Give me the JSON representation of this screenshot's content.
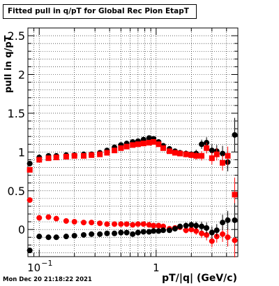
{
  "chart_data": {
    "type": "scatter",
    "title": "Fitted pull in q/pT for Global Rec Pion EtapT",
    "xlabel": "pT/|q| (GeV/c)",
    "ylabel": "pull in q/pT",
    "xscale": "log",
    "xlim": [
      0.08,
      5.0
    ],
    "ylim": [
      -0.35,
      2.6
    ],
    "yticks": [
      0,
      0.5,
      1,
      1.5,
      2,
      2.5
    ],
    "ytick_labels": [
      "0",
      "0.5",
      "1",
      "1.5",
      "2",
      "2.5"
    ],
    "xtick_labels": [
      {
        "value": 0.1,
        "label": "10",
        "exp": "−1"
      },
      {
        "value": 1,
        "label": "1",
        "exp": ""
      }
    ],
    "grid": true,
    "series": [
      {
        "color": "#000000",
        "marker": "circle",
        "x": [
          0.083,
          0.1,
          0.12,
          0.14,
          0.17,
          0.2,
          0.24,
          0.28,
          0.33,
          0.38,
          0.44,
          0.5,
          0.56,
          0.63,
          0.7,
          0.78,
          0.87,
          0.95,
          1.05,
          1.15,
          1.3,
          1.45,
          1.6,
          1.8,
          2.0,
          2.2,
          2.45,
          2.7,
          3.0,
          3.3,
          3.7,
          4.1,
          4.7
        ],
        "y": [
          0.85,
          0.93,
          0.95,
          0.95,
          0.96,
          0.96,
          0.97,
          0.97,
          0.99,
          1.02,
          1.06,
          1.09,
          1.11,
          1.13,
          1.14,
          1.16,
          1.18,
          1.17,
          1.13,
          1.08,
          1.04,
          1.01,
          0.99,
          0.98,
          0.97,
          0.98,
          1.1,
          1.12,
          1.02,
          1.01,
          0.98,
          0.87,
          1.22
        ],
        "yerr": [
          0.03,
          0.02,
          0.02,
          0.02,
          0.02,
          0.02,
          0.02,
          0.02,
          0.02,
          0.02,
          0.02,
          0.02,
          0.03,
          0.03,
          0.03,
          0.03,
          0.03,
          0.03,
          0.03,
          0.03,
          0.03,
          0.03,
          0.03,
          0.04,
          0.04,
          0.05,
          0.06,
          0.07,
          0.08,
          0.08,
          0.1,
          0.12,
          0.22
        ]
      },
      {
        "color": "#ff0000",
        "marker": "square",
        "x": [
          0.083,
          0.1,
          0.12,
          0.14,
          0.17,
          0.2,
          0.24,
          0.28,
          0.33,
          0.38,
          0.44,
          0.5,
          0.56,
          0.63,
          0.7,
          0.78,
          0.87,
          0.95,
          1.05,
          1.15,
          1.3,
          1.45,
          1.6,
          1.8,
          2.0,
          2.2,
          2.45,
          2.7,
          3.0,
          3.3,
          3.7,
          4.1,
          4.7
        ],
        "y": [
          0.77,
          0.9,
          0.92,
          0.93,
          0.94,
          0.95,
          0.95,
          0.96,
          0.97,
          0.99,
          1.02,
          1.05,
          1.07,
          1.09,
          1.1,
          1.11,
          1.12,
          1.13,
          1.1,
          1.05,
          1.01,
          0.99,
          0.98,
          0.97,
          0.96,
          0.95,
          0.95,
          1.05,
          0.92,
          0.97,
          0.86,
          0.95,
          0.45
        ],
        "yerr": [
          0.03,
          0.02,
          0.02,
          0.02,
          0.02,
          0.02,
          0.02,
          0.02,
          0.02,
          0.02,
          0.02,
          0.02,
          0.03,
          0.03,
          0.03,
          0.03,
          0.03,
          0.03,
          0.03,
          0.03,
          0.03,
          0.03,
          0.03,
          0.04,
          0.04,
          0.05,
          0.06,
          0.07,
          0.08,
          0.08,
          0.1,
          0.12,
          0.22
        ]
      },
      {
        "color": "#ff0000",
        "marker": "circle",
        "x": [
          0.083,
          0.1,
          0.12,
          0.14,
          0.17,
          0.2,
          0.24,
          0.28,
          0.33,
          0.38,
          0.44,
          0.5,
          0.56,
          0.63,
          0.7,
          0.78,
          0.87,
          0.95,
          1.05,
          1.15,
          1.3,
          1.45,
          1.6,
          1.8,
          2.0,
          2.2,
          2.45,
          2.7,
          3.0,
          3.3,
          3.7,
          4.1,
          4.7
        ],
        "y": [
          0.38,
          0.15,
          0.16,
          0.14,
          0.11,
          0.1,
          0.09,
          0.09,
          0.08,
          0.07,
          0.07,
          0.07,
          0.07,
          0.06,
          0.07,
          0.07,
          0.06,
          0.05,
          0.05,
          0.04,
          0.01,
          0.02,
          0.03,
          -0.01,
          0.0,
          -0.02,
          -0.05,
          -0.07,
          -0.15,
          -0.09,
          -0.06,
          -0.1,
          -0.14
        ],
        "yerr": [
          0.03,
          0.02,
          0.02,
          0.02,
          0.02,
          0.02,
          0.02,
          0.02,
          0.02,
          0.02,
          0.02,
          0.02,
          0.03,
          0.03,
          0.03,
          0.03,
          0.03,
          0.03,
          0.03,
          0.03,
          0.03,
          0.03,
          0.03,
          0.04,
          0.04,
          0.05,
          0.06,
          0.07,
          0.08,
          0.08,
          0.1,
          0.12,
          0.22
        ]
      },
      {
        "color": "#000000",
        "marker": "circle",
        "x": [
          0.083,
          0.1,
          0.12,
          0.14,
          0.17,
          0.2,
          0.24,
          0.28,
          0.33,
          0.38,
          0.44,
          0.5,
          0.56,
          0.63,
          0.7,
          0.78,
          0.87,
          0.95,
          1.05,
          1.15,
          1.3,
          1.45,
          1.6,
          1.8,
          2.0,
          2.2,
          2.45,
          2.7,
          3.0,
          3.3,
          3.7,
          4.1,
          4.7
        ],
        "y": [
          -0.27,
          -0.09,
          -0.1,
          -0.1,
          -0.09,
          -0.08,
          -0.07,
          -0.06,
          -0.06,
          -0.05,
          -0.05,
          -0.04,
          -0.04,
          -0.06,
          -0.04,
          -0.03,
          -0.03,
          -0.02,
          -0.02,
          -0.01,
          -0.01,
          0.01,
          0.04,
          0.05,
          0.06,
          0.05,
          0.04,
          0.02,
          -0.04,
          -0.01,
          0.09,
          0.12,
          0.12
        ],
        "yerr": [
          0.03,
          0.02,
          0.02,
          0.02,
          0.02,
          0.02,
          0.02,
          0.02,
          0.02,
          0.02,
          0.02,
          0.02,
          0.03,
          0.03,
          0.03,
          0.03,
          0.03,
          0.03,
          0.03,
          0.03,
          0.03,
          0.03,
          0.03,
          0.04,
          0.04,
          0.05,
          0.06,
          0.07,
          0.08,
          0.08,
          0.1,
          0.12,
          0.22
        ]
      }
    ]
  },
  "footer": {
    "timestamp": "Mon Dec 20 21:18:22 2021"
  }
}
